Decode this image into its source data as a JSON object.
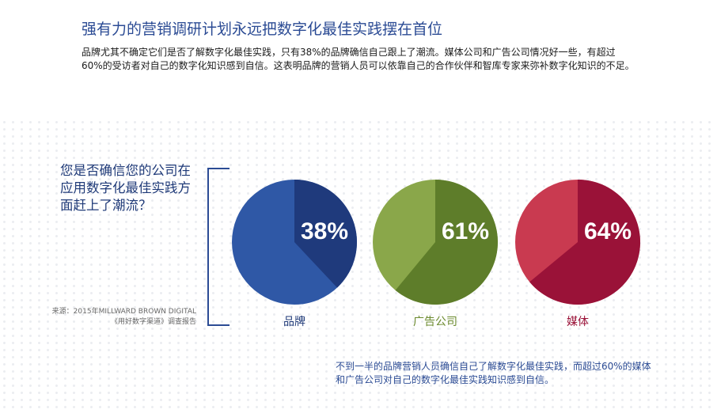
{
  "header": {
    "title": "强有力的营销调研计划永远把数字化最佳实践摆在首位",
    "intro": "品牌尤其不确定它们是否了解数字化最佳实践，只有38%的品牌确信自己跟上了潮流。媒体公司和广告公司情况好一些，有超过60%的受访者对自己的数字化知识感到自信。这表明品牌的营销人员可以依靠自己的合作伙伴和智库专家来弥补数字化知识的不足。"
  },
  "question": "您是否确信您的公司在应用数字化最佳实践方面赶上了潮流？",
  "source": {
    "line1": "来源：2015年MILLWARD BROWN DIGITAL",
    "line2": "《用好数字渠道》调查报告"
  },
  "footnote": "不到一半的品牌营销人员确信自己了解数字化最佳实践，而超过60%的媒体和广告公司对自己的数字化最佳实践知识感到自信。",
  "chart_data": {
    "type": "pie",
    "series": [
      {
        "name": "品牌",
        "value": 38,
        "label": "38%",
        "color_light": "#2f58a6",
        "color_dark": "#1f3a7c",
        "label_color": "#1f3a78"
      },
      {
        "name": "广告公司",
        "value": 61,
        "label": "61%",
        "color_light": "#8aa74a",
        "color_dark": "#5e7d2a",
        "label_color": "#6b8a2e"
      },
      {
        "name": "媒体",
        "value": 64,
        "label": "64%",
        "color_light": "#c93a50",
        "color_dark": "#9a1238",
        "label_color": "#9a1238"
      }
    ]
  }
}
